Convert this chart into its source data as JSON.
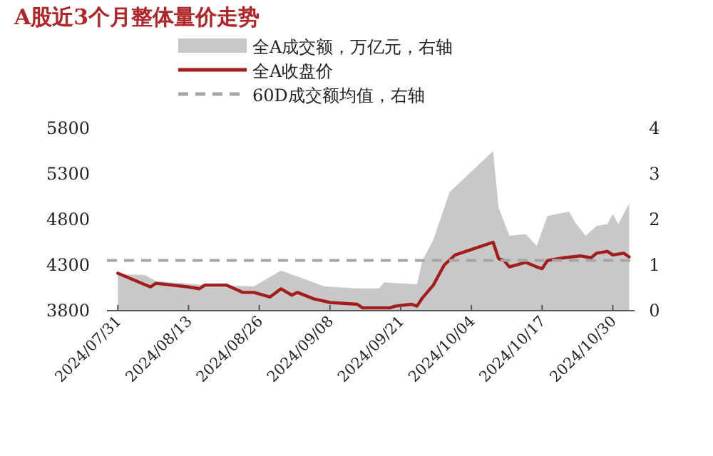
{
  "chart_data": {
    "type": "line",
    "title": "A股近3个月整体量价走势",
    "series": [
      {
        "name": "全A成交额，万亿元，右轴",
        "type": "area",
        "axis": "y2",
        "color": "#c8c8c8",
        "x": [
          "2024-07-31",
          "2024-08-05",
          "2024-08-07",
          "2024-08-15",
          "2024-08-25",
          "2024-08-30",
          "2024-09-02",
          "2024-09-07",
          "2024-09-13",
          "2024-09-17",
          "2024-09-18",
          "2024-09-24",
          "2024-09-25",
          "2024-09-27",
          "2024-09-30",
          "2024-10-08",
          "2024-10-09",
          "2024-10-11",
          "2024-10-14",
          "2024-10-16",
          "2024-10-18",
          "2024-10-22",
          "2024-10-23",
          "2024-10-25",
          "2024-10-27",
          "2024-10-29",
          "2024-10-30",
          "2024-10-31",
          "2024-11-02"
        ],
        "values": [
          0.8,
          0.78,
          0.65,
          0.57,
          0.53,
          0.88,
          0.75,
          0.53,
          0.49,
          0.49,
          0.62,
          0.58,
          1.1,
          1.55,
          2.6,
          3.5,
          2.26,
          1.64,
          1.68,
          1.42,
          2.08,
          2.17,
          1.95,
          1.64,
          1.86,
          1.9,
          2.12,
          1.9,
          2.35
        ]
      },
      {
        "name": "全A收盘价",
        "color": "#a31d1d",
        "x": [
          "2024-07-31",
          "2024-08-06",
          "2024-08-07",
          "2024-08-13",
          "2024-08-15",
          "2024-08-16",
          "2024-08-20",
          "2024-08-23",
          "2024-08-25",
          "2024-08-28",
          "2024-08-30",
          "2024-09-01",
          "2024-09-02",
          "2024-09-05",
          "2024-09-08",
          "2024-09-13",
          "2024-09-14",
          "2024-09-19",
          "2024-09-20",
          "2024-09-23",
          "2024-09-24",
          "2024-09-25",
          "2024-09-27",
          "2024-09-29",
          "2024-10-01",
          "2024-10-05",
          "2024-10-08",
          "2024-10-09",
          "2024-10-10",
          "2024-10-11",
          "2024-10-14",
          "2024-10-16",
          "2024-10-17",
          "2024-10-18",
          "2024-10-21",
          "2024-10-24",
          "2024-10-26",
          "2024-10-27",
          "2024-10-29",
          "2024-10-30",
          "2024-11-01",
          "2024-11-02"
        ],
        "values": [
          4210,
          4060,
          4100,
          4060,
          4040,
          4080,
          4080,
          4000,
          4000,
          3950,
          4040,
          3970,
          4000,
          3930,
          3890,
          3870,
          3830,
          3830,
          3850,
          3870,
          3850,
          3940,
          4080,
          4300,
          4410,
          4490,
          4550,
          4370,
          4350,
          4280,
          4330,
          4280,
          4260,
          4350,
          4380,
          4400,
          4380,
          4430,
          4450,
          4410,
          4430,
          4390
        ]
      }
    ],
    "ref_lines": [
      {
        "axis": "y2",
        "value": 1.1,
        "label": "60D成交额均值，右轴",
        "color": "#a6a6a6",
        "line_style": "dashed"
      }
    ],
    "xlim": [
      "2024-07-29",
      "2024-11-03"
    ],
    "xticks": [
      {
        "value": "2024-07-31",
        "label": "2024/07/31"
      },
      {
        "value": "2024-08-13",
        "label": "2024/08/13"
      },
      {
        "value": "2024-08-26",
        "label": "2024/08/26"
      },
      {
        "value": "2024-09-08",
        "label": "2024/09/08"
      },
      {
        "value": "2024-09-21",
        "label": "2024/09/21"
      },
      {
        "value": "2024-10-04",
        "label": "2024/10/04"
      },
      {
        "value": "2024-10-17",
        "label": "2024/10/17"
      },
      {
        "value": "2024-10-30",
        "label": "2024/10/30"
      }
    ],
    "ylim": [
      3800,
      5800
    ],
    "yticks": [
      3800,
      4300,
      4800,
      5300,
      5800
    ],
    "y2lim": [
      0,
      4
    ],
    "y2ticks": [
      0,
      1,
      2,
      3,
      4
    ],
    "legend": "top",
    "grid": false
  }
}
